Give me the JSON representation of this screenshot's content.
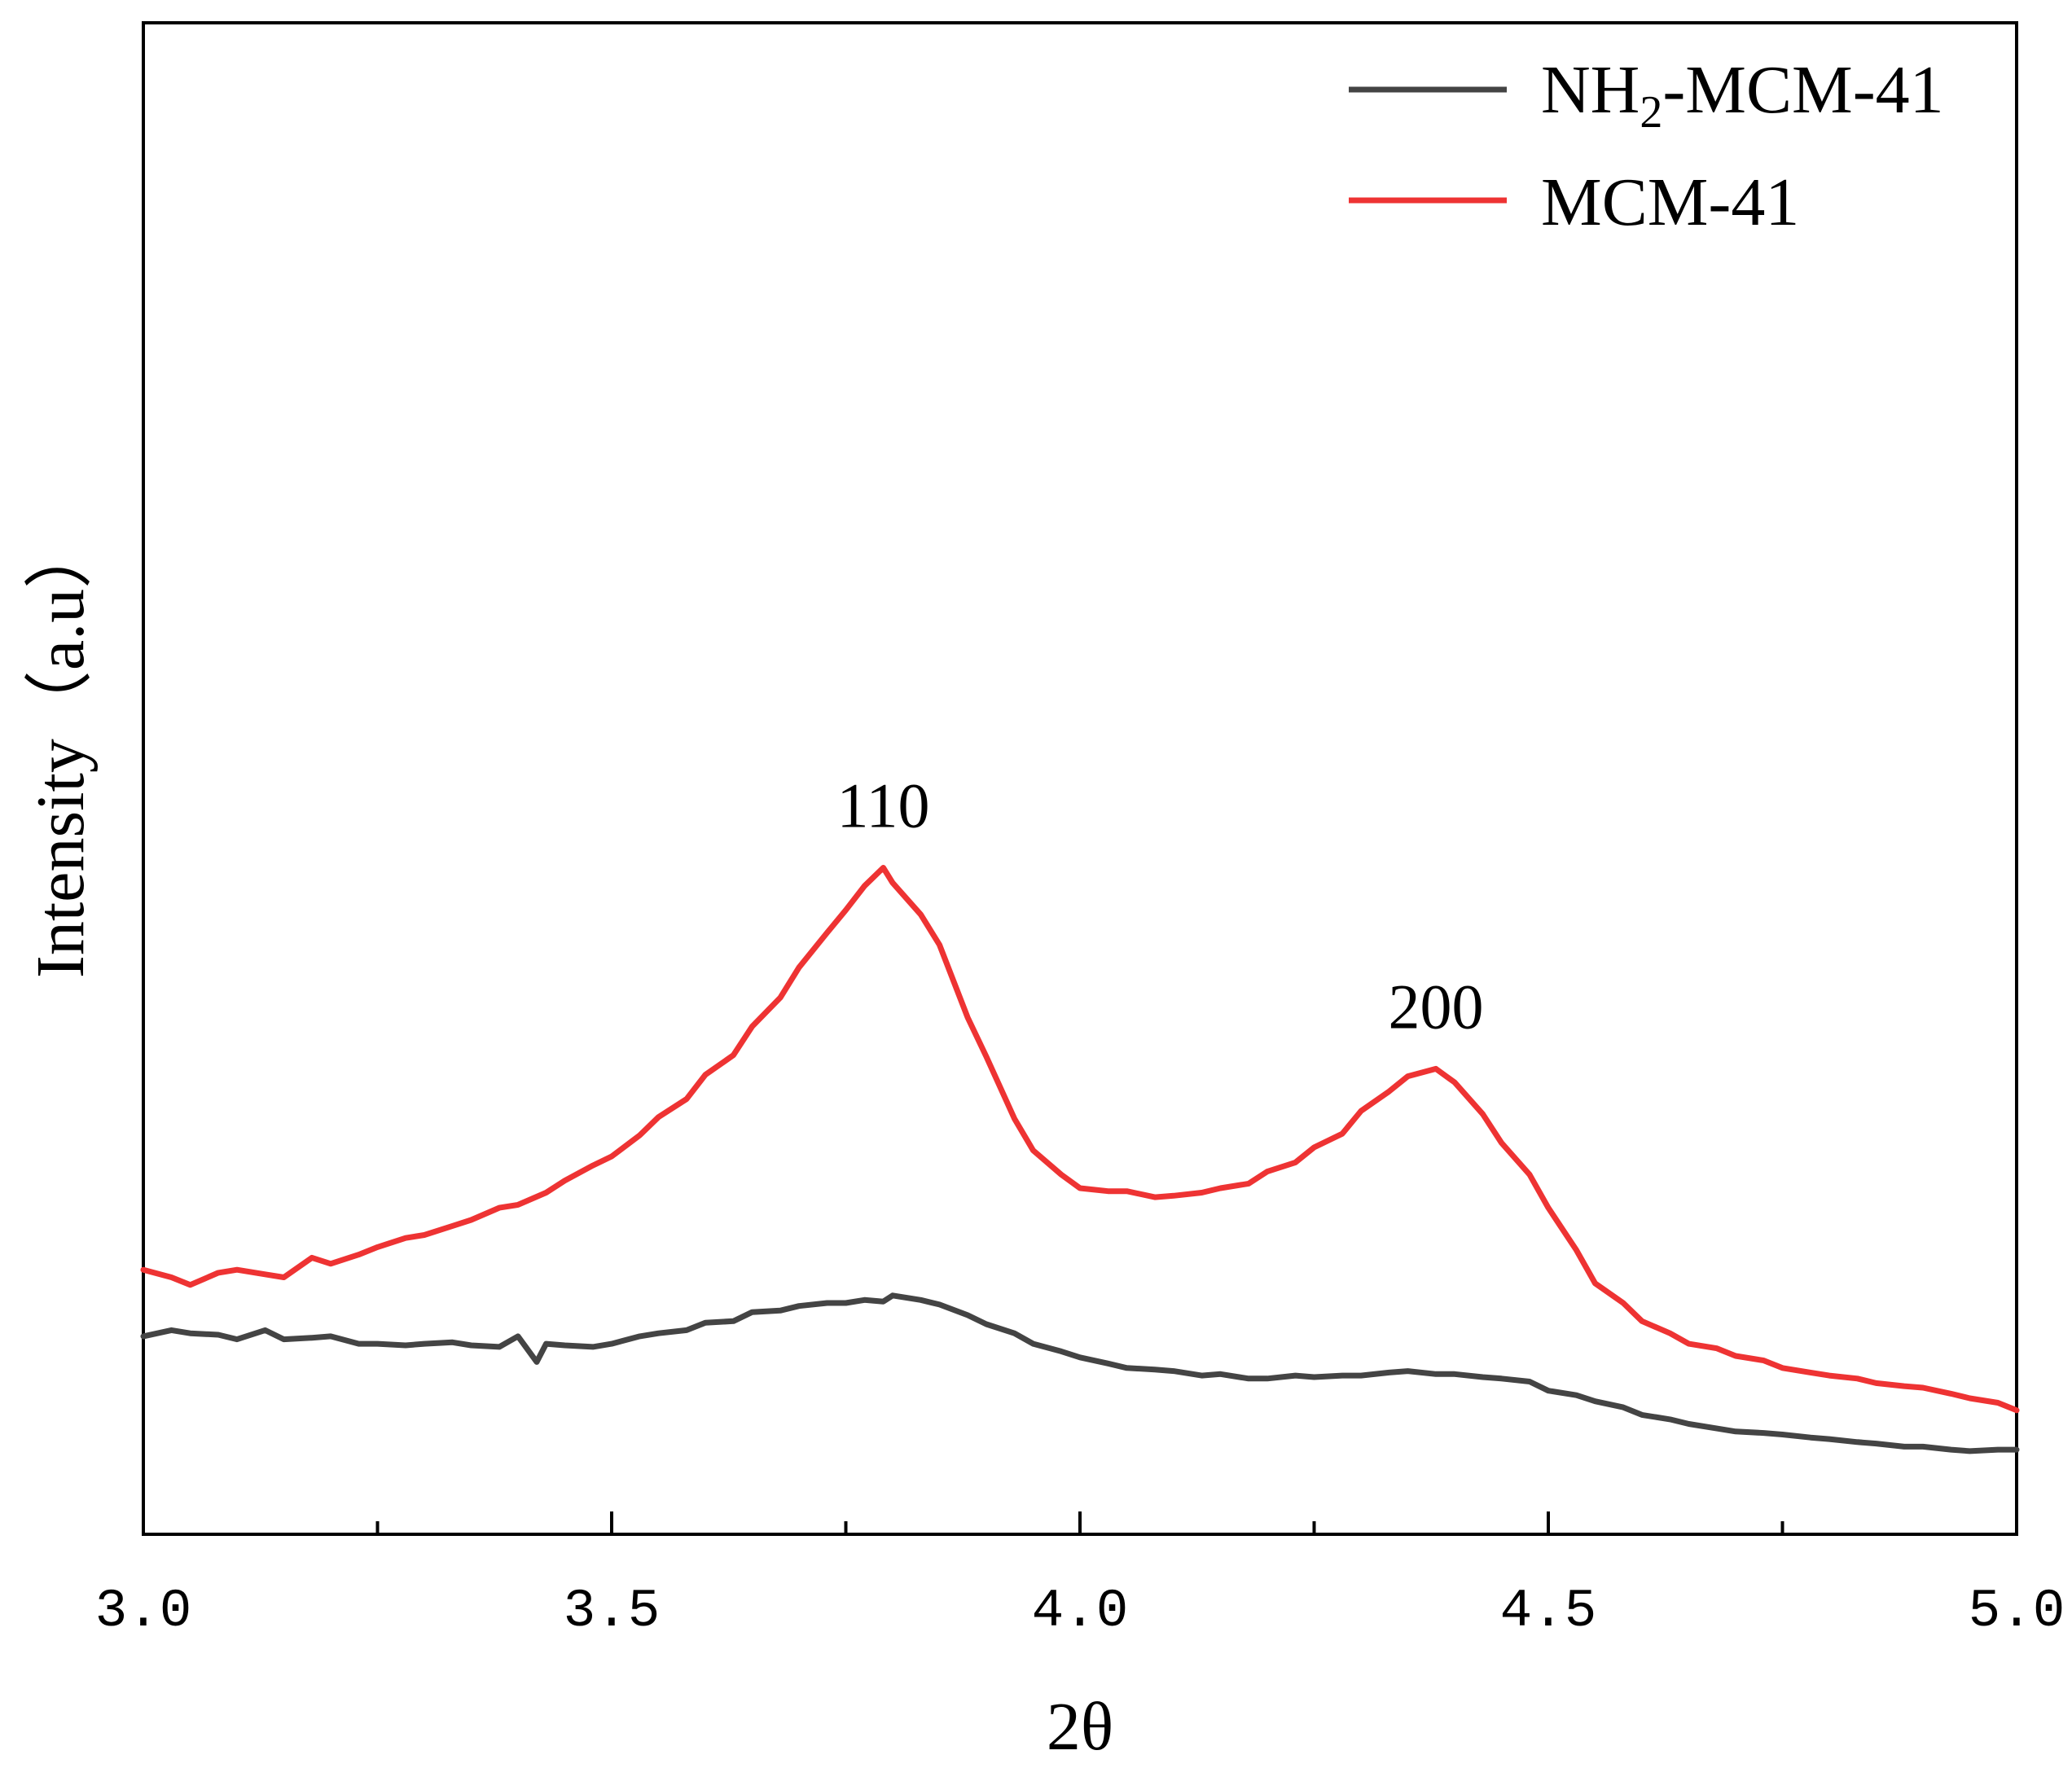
{
  "chart_data": {
    "type": "line",
    "title": "",
    "xlabel": "2θ",
    "ylabel": "Intensity（a.u）",
    "xlim": [
      3.0,
      5.0
    ],
    "ylim": [
      0,
      100
    ],
    "x_ticks": [
      "3.0",
      "3.5",
      "4.0",
      "4.5",
      "5.0"
    ],
    "y_ticks_shown": false,
    "grid": false,
    "legend_position": "top-right",
    "series": [
      {
        "name": "NH2-MCM-41",
        "legend_main": "NH",
        "legend_sub": "2",
        "legend_rest": "-MCM-41",
        "color": "#444444",
        "x": [
          3.0,
          3.03,
          3.05,
          3.08,
          3.1,
          3.13,
          3.15,
          3.18,
          3.2,
          3.23,
          3.25,
          3.28,
          3.3,
          3.33,
          3.35,
          3.38,
          3.4,
          3.42,
          3.43,
          3.45,
          3.48,
          3.5,
          3.53,
          3.55,
          3.58,
          3.6,
          3.63,
          3.65,
          3.68,
          3.7,
          3.73,
          3.75,
          3.77,
          3.79,
          3.8,
          3.83,
          3.85,
          3.88,
          3.9,
          3.93,
          3.95,
          3.98,
          4.0,
          4.03,
          4.05,
          4.08,
          4.1,
          4.13,
          4.15,
          4.18,
          4.2,
          4.23,
          4.25,
          4.28,
          4.3,
          4.33,
          4.35,
          4.38,
          4.4,
          4.43,
          4.45,
          4.48,
          4.5,
          4.53,
          4.55,
          4.58,
          4.6,
          4.63,
          4.65,
          4.68,
          4.7,
          4.73,
          4.75,
          4.78,
          4.8,
          4.83,
          4.85,
          4.88,
          4.9,
          4.93,
          4.95,
          4.98,
          5.0
        ],
        "y": [
          13.1,
          13.5,
          13.3,
          13.2,
          12.9,
          13.5,
          12.9,
          13.0,
          13.1,
          12.6,
          12.6,
          12.5,
          12.6,
          12.7,
          12.5,
          12.4,
          13.1,
          11.4,
          12.6,
          12.5,
          12.4,
          12.6,
          13.1,
          13.3,
          13.5,
          14.0,
          14.1,
          14.7,
          14.8,
          15.1,
          15.3,
          15.3,
          15.5,
          15.4,
          15.8,
          15.5,
          15.2,
          14.5,
          13.9,
          13.3,
          12.6,
          12.1,
          11.7,
          11.3,
          11.0,
          10.9,
          10.8,
          10.5,
          10.6,
          10.3,
          10.3,
          10.5,
          10.4,
          10.5,
          10.5,
          10.7,
          10.8,
          10.6,
          10.6,
          10.4,
          10.3,
          10.1,
          9.5,
          9.2,
          8.8,
          8.4,
          7.9,
          7.6,
          7.3,
          7.0,
          6.8,
          6.7,
          6.6,
          6.4,
          6.3,
          6.1,
          6.0,
          5.8,
          5.8,
          5.6,
          5.5,
          5.6,
          5.6
        ]
      },
      {
        "name": "MCM-41",
        "legend_main": "MCM-41",
        "legend_sub": "",
        "legend_rest": "",
        "color": "#ee3333",
        "x": [
          3.0,
          3.03,
          3.05,
          3.08,
          3.1,
          3.13,
          3.15,
          3.18,
          3.2,
          3.23,
          3.25,
          3.28,
          3.3,
          3.33,
          3.35,
          3.38,
          3.4,
          3.43,
          3.45,
          3.48,
          3.5,
          3.53,
          3.55,
          3.58,
          3.6,
          3.63,
          3.65,
          3.68,
          3.7,
          3.73,
          3.75,
          3.77,
          3.79,
          3.8,
          3.83,
          3.85,
          3.88,
          3.9,
          3.93,
          3.95,
          3.98,
          4.0,
          4.03,
          4.05,
          4.08,
          4.1,
          4.13,
          4.15,
          4.18,
          4.2,
          4.23,
          4.25,
          4.28,
          4.3,
          4.33,
          4.35,
          4.38,
          4.4,
          4.43,
          4.45,
          4.48,
          4.5,
          4.53,
          4.55,
          4.58,
          4.6,
          4.63,
          4.65,
          4.68,
          4.7,
          4.73,
          4.75,
          4.78,
          4.8,
          4.83,
          4.85,
          4.88,
          4.9,
          4.93,
          4.95,
          4.98,
          5.0
        ],
        "y": [
          17.5,
          17.0,
          16.5,
          17.3,
          17.5,
          17.2,
          17.0,
          18.3,
          17.9,
          18.5,
          19.0,
          19.6,
          19.8,
          20.4,
          20.8,
          21.6,
          21.8,
          22.6,
          23.4,
          24.4,
          25.0,
          26.4,
          27.6,
          28.8,
          30.4,
          31.7,
          33.6,
          35.5,
          37.5,
          39.8,
          41.3,
          42.9,
          44.1,
          43.1,
          41.0,
          39.0,
          34.2,
          31.6,
          27.5,
          25.4,
          23.8,
          22.9,
          22.7,
          22.7,
          22.3,
          22.4,
          22.6,
          22.9,
          23.2,
          24.0,
          24.6,
          25.6,
          26.5,
          28.0,
          29.3,
          30.3,
          30.8,
          29.9,
          27.8,
          25.9,
          23.8,
          21.6,
          18.8,
          16.6,
          15.3,
          14.1,
          13.3,
          12.6,
          12.3,
          11.8,
          11.5,
          11.0,
          10.7,
          10.5,
          10.3,
          10.0,
          9.8,
          9.7,
          9.3,
          9.0,
          8.7,
          8.2
        ]
      }
    ],
    "annotations": [
      {
        "text": "110",
        "x": 3.79,
        "y": 44.1
      },
      {
        "text": "200",
        "x": 4.38,
        "y": 30.8
      }
    ]
  }
}
